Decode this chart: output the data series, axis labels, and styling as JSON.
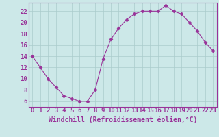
{
  "x": [
    0,
    1,
    2,
    3,
    4,
    5,
    6,
    7,
    8,
    9,
    10,
    11,
    12,
    13,
    14,
    15,
    16,
    17,
    18,
    19,
    20,
    21,
    22,
    23
  ],
  "y": [
    14,
    12,
    10,
    8.5,
    7,
    6.5,
    6,
    6,
    8,
    13.5,
    17,
    19,
    20.5,
    21.5,
    22,
    22,
    22,
    23,
    22,
    21.5,
    20,
    18.5,
    16.5,
    15
  ],
  "line_color": "#993399",
  "marker": "D",
  "marker_size": 2.5,
  "bg_color": "#cce8e8",
  "grid_color": "#aacccc",
  "xlabel": "Windchill (Refroidissement éolien,°C)",
  "xlabel_color": "#993399",
  "xlabel_fontsize": 7,
  "xtick_labels": [
    "0",
    "1",
    "2",
    "3",
    "4",
    "5",
    "6",
    "7",
    "8",
    "9",
    "10",
    "11",
    "12",
    "13",
    "14",
    "15",
    "16",
    "17",
    "18",
    "19",
    "20",
    "21",
    "22",
    "23"
  ],
  "ytick_values": [
    6,
    8,
    10,
    12,
    14,
    16,
    18,
    20,
    22
  ],
  "ylim": [
    5.0,
    23.5
  ],
  "xlim": [
    -0.5,
    23.5
  ],
  "tick_color": "#993399",
  "tick_fontsize": 6.5,
  "spine_color": "#993399"
}
